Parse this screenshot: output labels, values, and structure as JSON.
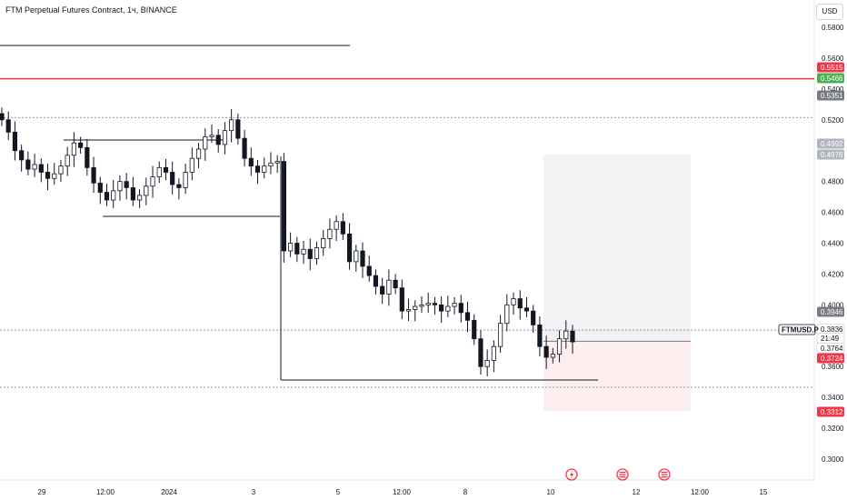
{
  "header": {
    "title": "FTM Perpetual Futures Contract, 1ч, BINANCE"
  },
  "axis": {
    "currency": "USD"
  },
  "chart_data": {
    "type": "candlestick",
    "ylim": [
      0.29,
      0.59
    ],
    "y_ticks": [
      "0.5800",
      "0.5600",
      "0.5400",
      "0.5200",
      "0.4800",
      "0.4600",
      "0.4400",
      "0.4200",
      "0.4000",
      "0.3600",
      "0.3400",
      "0.3200",
      "0.3000"
    ],
    "x_ticks": [
      "29",
      "12:00",
      "2024",
      "3",
      "5",
      "12:00",
      "8",
      "10",
      "12",
      "12:00",
      "15"
    ],
    "close_series": [
      0.52,
      0.512,
      0.5,
      0.494,
      0.488,
      0.491,
      0.486,
      0.482,
      0.485,
      0.49,
      0.497,
      0.505,
      0.502,
      0.489,
      0.479,
      0.473,
      0.468,
      0.474,
      0.48,
      0.476,
      0.468,
      0.471,
      0.477,
      0.483,
      0.489,
      0.486,
      0.478,
      0.476,
      0.486,
      0.495,
      0.501,
      0.509,
      0.51,
      0.504,
      0.513,
      0.52,
      0.508,
      0.495,
      0.49,
      0.486,
      0.49,
      0.492,
      0.493,
      0.435,
      0.44,
      0.433,
      0.436,
      0.43,
      0.437,
      0.443,
      0.449,
      0.454,
      0.446,
      0.428,
      0.435,
      0.425,
      0.419,
      0.412,
      0.407,
      0.416,
      0.411,
      0.396,
      0.397,
      0.399,
      0.4,
      0.401,
      0.4,
      0.396,
      0.399,
      0.401,
      0.395,
      0.39,
      0.378,
      0.36,
      0.364,
      0.373,
      0.388,
      0.4,
      0.404,
      0.398,
      0.396,
      0.387,
      0.373,
      0.366,
      0.368,
      0.378,
      0.383,
      0.376
    ],
    "price_labels": [
      {
        "value": "0.5515",
        "color": "#f23645"
      },
      {
        "value": "0.5466",
        "color": "#4caf50"
      },
      {
        "value": "0.5351",
        "color": "#787b86"
      },
      {
        "value": "0.4992",
        "color": "#b2b5be"
      },
      {
        "value": "0.4976",
        "color": "#b2b5be"
      },
      {
        "value": "0.3946",
        "color": "#787b86"
      },
      {
        "value": "0.3836",
        "color": "#ffffff"
      },
      {
        "value": "21:49",
        "color": "#ffffff"
      },
      {
        "value": "0.3764",
        "color": "#ffffff"
      },
      {
        "value": "0.3724",
        "color": "#f23645"
      },
      {
        "value": "0.3312",
        "color": "#f23645"
      }
    ],
    "symbol_label": "FTMUSD.P",
    "horizontal_levels": [
      {
        "value": 0.5466,
        "color": "#f23645",
        "style": "solid"
      },
      {
        "value": 0.5214,
        "color": "#9598a1",
        "style": "dotted"
      },
      {
        "value": 0.3836,
        "color": "#9598a1",
        "style": "dotted"
      },
      {
        "value": 0.3465,
        "color": "#9598a1",
        "style": "dotted"
      }
    ],
    "position_tool": {
      "entry": 0.3764,
      "target": 0.4976,
      "stop": 0.3312
    }
  },
  "events": [
    {
      "icon": "lightning-icon"
    },
    {
      "icon": "flag-icon"
    },
    {
      "icon": "flag-icon"
    }
  ],
  "colors": {
    "accent_red": "#f23645",
    "accent_green": "#4caf50",
    "grid": "#e0e3eb"
  }
}
